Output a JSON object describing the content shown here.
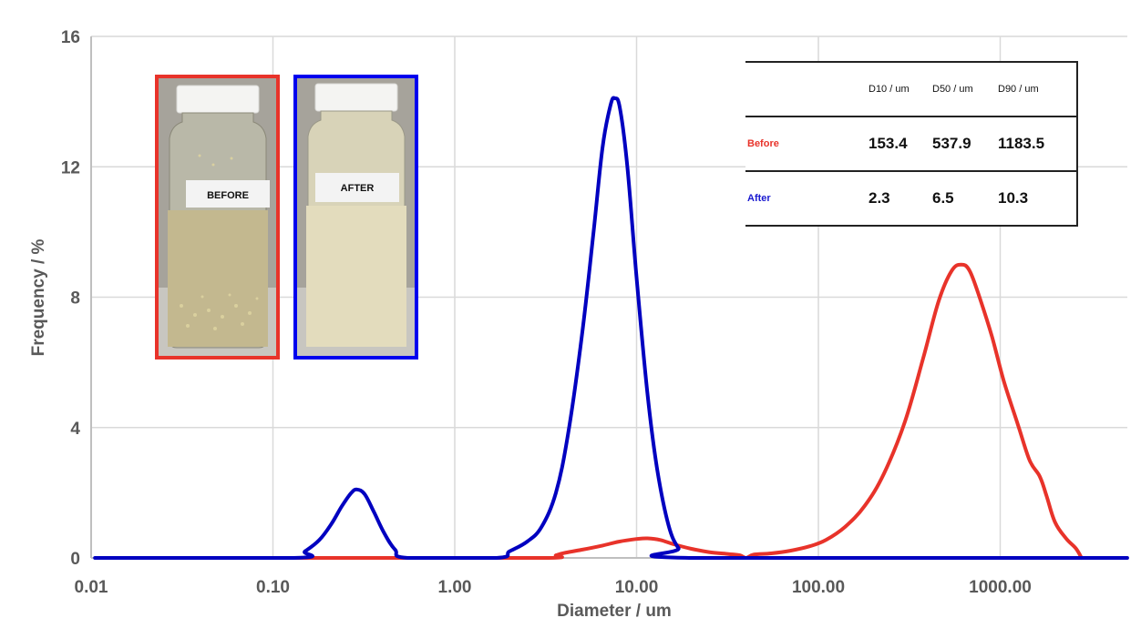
{
  "chart_data": {
    "type": "line",
    "title": "",
    "xlabel": "Diameter / um",
    "ylabel": "Frequency / %",
    "xscale": "log",
    "xlim": [
      0.01,
      5000
    ],
    "ylim": [
      0,
      16
    ],
    "grid": true,
    "x_ticks": [
      "0.01",
      "0.10",
      "1.00",
      "10.00",
      "100.00",
      "1000.00"
    ],
    "y_ticks": [
      "0",
      "4",
      "8",
      "12",
      "16"
    ],
    "legend": "none (table labels identify series)",
    "series": [
      {
        "name": "Before",
        "color": "#e8332a",
        "points": [
          [
            0.13,
            0
          ],
          [
            0.55,
            0
          ],
          [
            3.3,
            0
          ],
          [
            3.6,
            0.08
          ],
          [
            4.0,
            0.15
          ],
          [
            5.0,
            0.25
          ],
          [
            6.5,
            0.38
          ],
          [
            8.0,
            0.5
          ],
          [
            10.0,
            0.58
          ],
          [
            11.5,
            0.6
          ],
          [
            13.5,
            0.55
          ],
          [
            16.0,
            0.42
          ],
          [
            20.0,
            0.28
          ],
          [
            25.0,
            0.18
          ],
          [
            32.0,
            0.12
          ],
          [
            37.0,
            0.08
          ],
          [
            40.0,
            0.0
          ],
          [
            44.0,
            0.1
          ],
          [
            55.0,
            0.14
          ],
          [
            70.0,
            0.22
          ],
          [
            90.0,
            0.36
          ],
          [
            110.0,
            0.55
          ],
          [
            140.0,
            0.95
          ],
          [
            180.0,
            1.6
          ],
          [
            230.0,
            2.6
          ],
          [
            300.0,
            4.2
          ],
          [
            380.0,
            6.2
          ],
          [
            460.0,
            7.9
          ],
          [
            540.0,
            8.8
          ],
          [
            610.0,
            9.0
          ],
          [
            680.0,
            8.8
          ],
          [
            780.0,
            7.9
          ],
          [
            900.0,
            6.8
          ],
          [
            1050.0,
            5.4
          ],
          [
            1250.0,
            4.1
          ],
          [
            1450.0,
            3.0
          ],
          [
            1650.0,
            2.5
          ],
          [
            1800.0,
            1.9
          ],
          [
            2000.0,
            1.1
          ],
          [
            2300.0,
            0.6
          ],
          [
            2600.0,
            0.3
          ],
          [
            2800.0,
            0.0
          ]
        ]
      },
      {
        "name": "After",
        "color": "#0000c0",
        "points": [
          [
            0.0105,
            0
          ],
          [
            0.13,
            0
          ],
          [
            0.15,
            0.2
          ],
          [
            0.18,
            0.55
          ],
          [
            0.21,
            1.05
          ],
          [
            0.24,
            1.6
          ],
          [
            0.27,
            2.0
          ],
          [
            0.29,
            2.1
          ],
          [
            0.32,
            1.95
          ],
          [
            0.36,
            1.4
          ],
          [
            0.41,
            0.75
          ],
          [
            0.47,
            0.25
          ],
          [
            0.55,
            0.0
          ],
          [
            1.7,
            0.0
          ],
          [
            2.0,
            0.2
          ],
          [
            2.5,
            0.5
          ],
          [
            3.0,
            0.95
          ],
          [
            3.6,
            2.0
          ],
          [
            4.2,
            3.8
          ],
          [
            5.0,
            6.8
          ],
          [
            5.8,
            10.0
          ],
          [
            6.5,
            12.6
          ],
          [
            7.2,
            13.9
          ],
          [
            7.6,
            14.1
          ],
          [
            8.1,
            13.8
          ],
          [
            8.9,
            12.0
          ],
          [
            10.0,
            8.6
          ],
          [
            11.5,
            5.0
          ],
          [
            13.0,
            2.7
          ],
          [
            15.0,
            1.0
          ],
          [
            17.0,
            0.3
          ],
          [
            19.5,
            0.0
          ],
          [
            5000.0,
            0.0
          ]
        ]
      }
    ]
  },
  "photos": [
    {
      "label": "BEFORE",
      "border_color": "#e8332a"
    },
    {
      "label": "AFTER",
      "border_color": "#0000ee"
    }
  ],
  "table": {
    "headers": [
      "",
      "D10 / um",
      "D50 / um",
      "D90 / um"
    ],
    "rows": [
      {
        "label": "Before",
        "color": "#e8332a",
        "d10": "153.4",
        "d50": "537.9",
        "d90": "1183.5"
      },
      {
        "label": "After",
        "color": "#1a1ad0",
        "d10": "2.3",
        "d50": "6.5",
        "d90": "10.3"
      }
    ]
  }
}
